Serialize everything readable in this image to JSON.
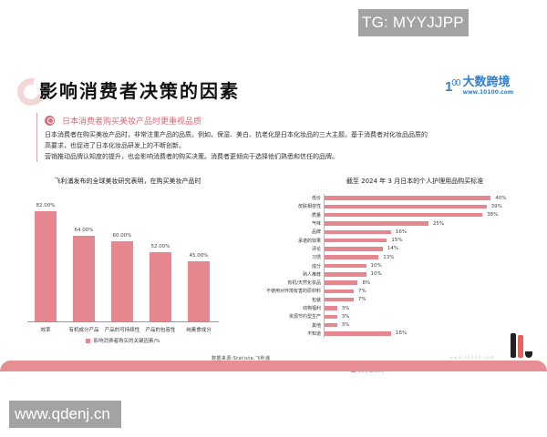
{
  "watermarks": {
    "top": "TG: MYYJJPP",
    "bottom": "www.qdenj.cn"
  },
  "header": {
    "title": "影响消费者决策的因素",
    "logo": {
      "mark": "1",
      "mark_sup": "00",
      "name": "大数跨境",
      "url": "www.10100.com"
    }
  },
  "section": {
    "title": "日本消费者购买美妆产品时更重视品质",
    "lines": [
      "日本消费者在购买美妆产品时，非常注重产品的品质。例如，保湿、美白、抗老化是日本化妆品的三大主题，基于消费者对化妆品品质的",
      "高要求，也促进了日本化妆品研发上的不断创新。",
      "营销推动品牌认知度的提升，也会影响消费者的购买决策。消费者更倾向于选择他们熟悉和信任的品牌。"
    ]
  },
  "chart_data": [
    {
      "type": "bar",
      "title": "飞利浦发布的全球美妆研究表明，在购买美妆产品时",
      "categories": [
        "效率",
        "有机成分产品",
        "产品的可持续性",
        "产品的包容性",
        "纯素食成分"
      ],
      "values": [
        82,
        64,
        60,
        52,
        45
      ],
      "value_labels": [
        "82.00%",
        "64.00%",
        "60.00%",
        "52.00%",
        "45.00%"
      ],
      "legend": "影响消费者购买的关键因素/%",
      "xlabel": "",
      "ylabel": "",
      "ylim": [
        0,
        100
      ],
      "color": "#e6868f",
      "grid": false
    },
    {
      "type": "bar",
      "orientation": "horizontal",
      "title": "截至 2024 年 3 月日本的个人护理用品购买标准",
      "categories": [
        "低价",
        "皮肤相容性",
        "质量",
        "气味",
        "品牌",
        "承诺的效果",
        "评论",
        "习惯",
        "成分",
        "熟人推荐",
        "有机/天然化妆品",
        "不使用对环境有害的原材料",
        "包装",
        "动物福利",
        "资源节约型生产",
        "其他",
        "不知道"
      ],
      "values": [
        40,
        39,
        38,
        25,
        16,
        15,
        14,
        13,
        10,
        10,
        8,
        7,
        7,
        3,
        3,
        3,
        16
      ],
      "value_labels": [
        "40%",
        "39%",
        "38%",
        "25%",
        "16%",
        "15%",
        "14%",
        "13%",
        "10%",
        "10%",
        "8%",
        "7%",
        "7%",
        "3%",
        "3%",
        "3%",
        "16%"
      ],
      "legend": "受访者比例",
      "xlim": [
        0,
        45
      ],
      "color": "#e6868f",
      "grid": false
    }
  ],
  "footer": {
    "source": "数据来源:Statiste,飞利浦",
    "url": "www.10100.com"
  },
  "colors": {
    "accent": "#e6868f",
    "band": "#e78d94",
    "logo": "#2f7fd2",
    "section_title": "#d56c77"
  }
}
